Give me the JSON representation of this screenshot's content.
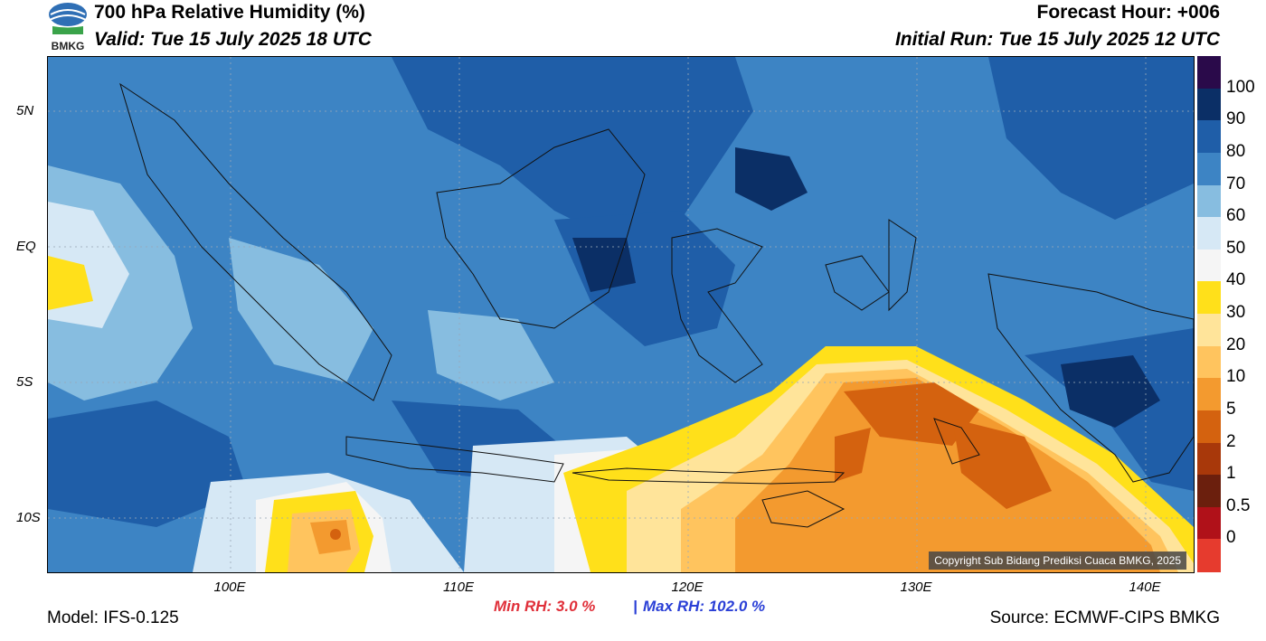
{
  "header": {
    "title": "700 hPa Relative Humidity (%)",
    "valid": "Valid: Tue 15 July 2025 18 UTC",
    "forecast_hour": "Forecast Hour: +006",
    "initial_run": "Initial Run: Tue 15 July 2025 12 UTC"
  },
  "logo": {
    "text": "BMKG"
  },
  "map": {
    "lat_labels": [
      "5N",
      "EQ",
      "5S",
      "10S"
    ],
    "lon_labels": [
      "100E",
      "110E",
      "120E",
      "130E",
      "140E"
    ],
    "copyright": "Copyright Sub Bidang Prediksi Cuaca BMKG, 2025"
  },
  "colorbar": {
    "labels": [
      "100",
      "90",
      "80",
      "70",
      "60",
      "50",
      "40",
      "30",
      "20",
      "10",
      "5",
      "2",
      "1",
      "0.5",
      "0"
    ],
    "colors": [
      "#2a0a4a",
      "#0b2f66",
      "#1f5ea8",
      "#3d84c4",
      "#87bde0",
      "#d6e8f5",
      "#f5f5f5",
      "#ffe01a",
      "#ffe49a",
      "#ffc45e",
      "#f39a2f",
      "#d4620f",
      "#a8380a",
      "#6b1f0d",
      "#b01119",
      "#e63b2e"
    ]
  },
  "stats": {
    "min_label": "Min RH:   3.0 %",
    "separator": "|",
    "max_label": "Max RH: 102.0 %",
    "min_color": "#e0303a",
    "max_color": "#2a3fd6"
  },
  "footer": {
    "model": "Model: IFS-0.125",
    "source": "Source: ECMWF-CIPS BMKG"
  }
}
